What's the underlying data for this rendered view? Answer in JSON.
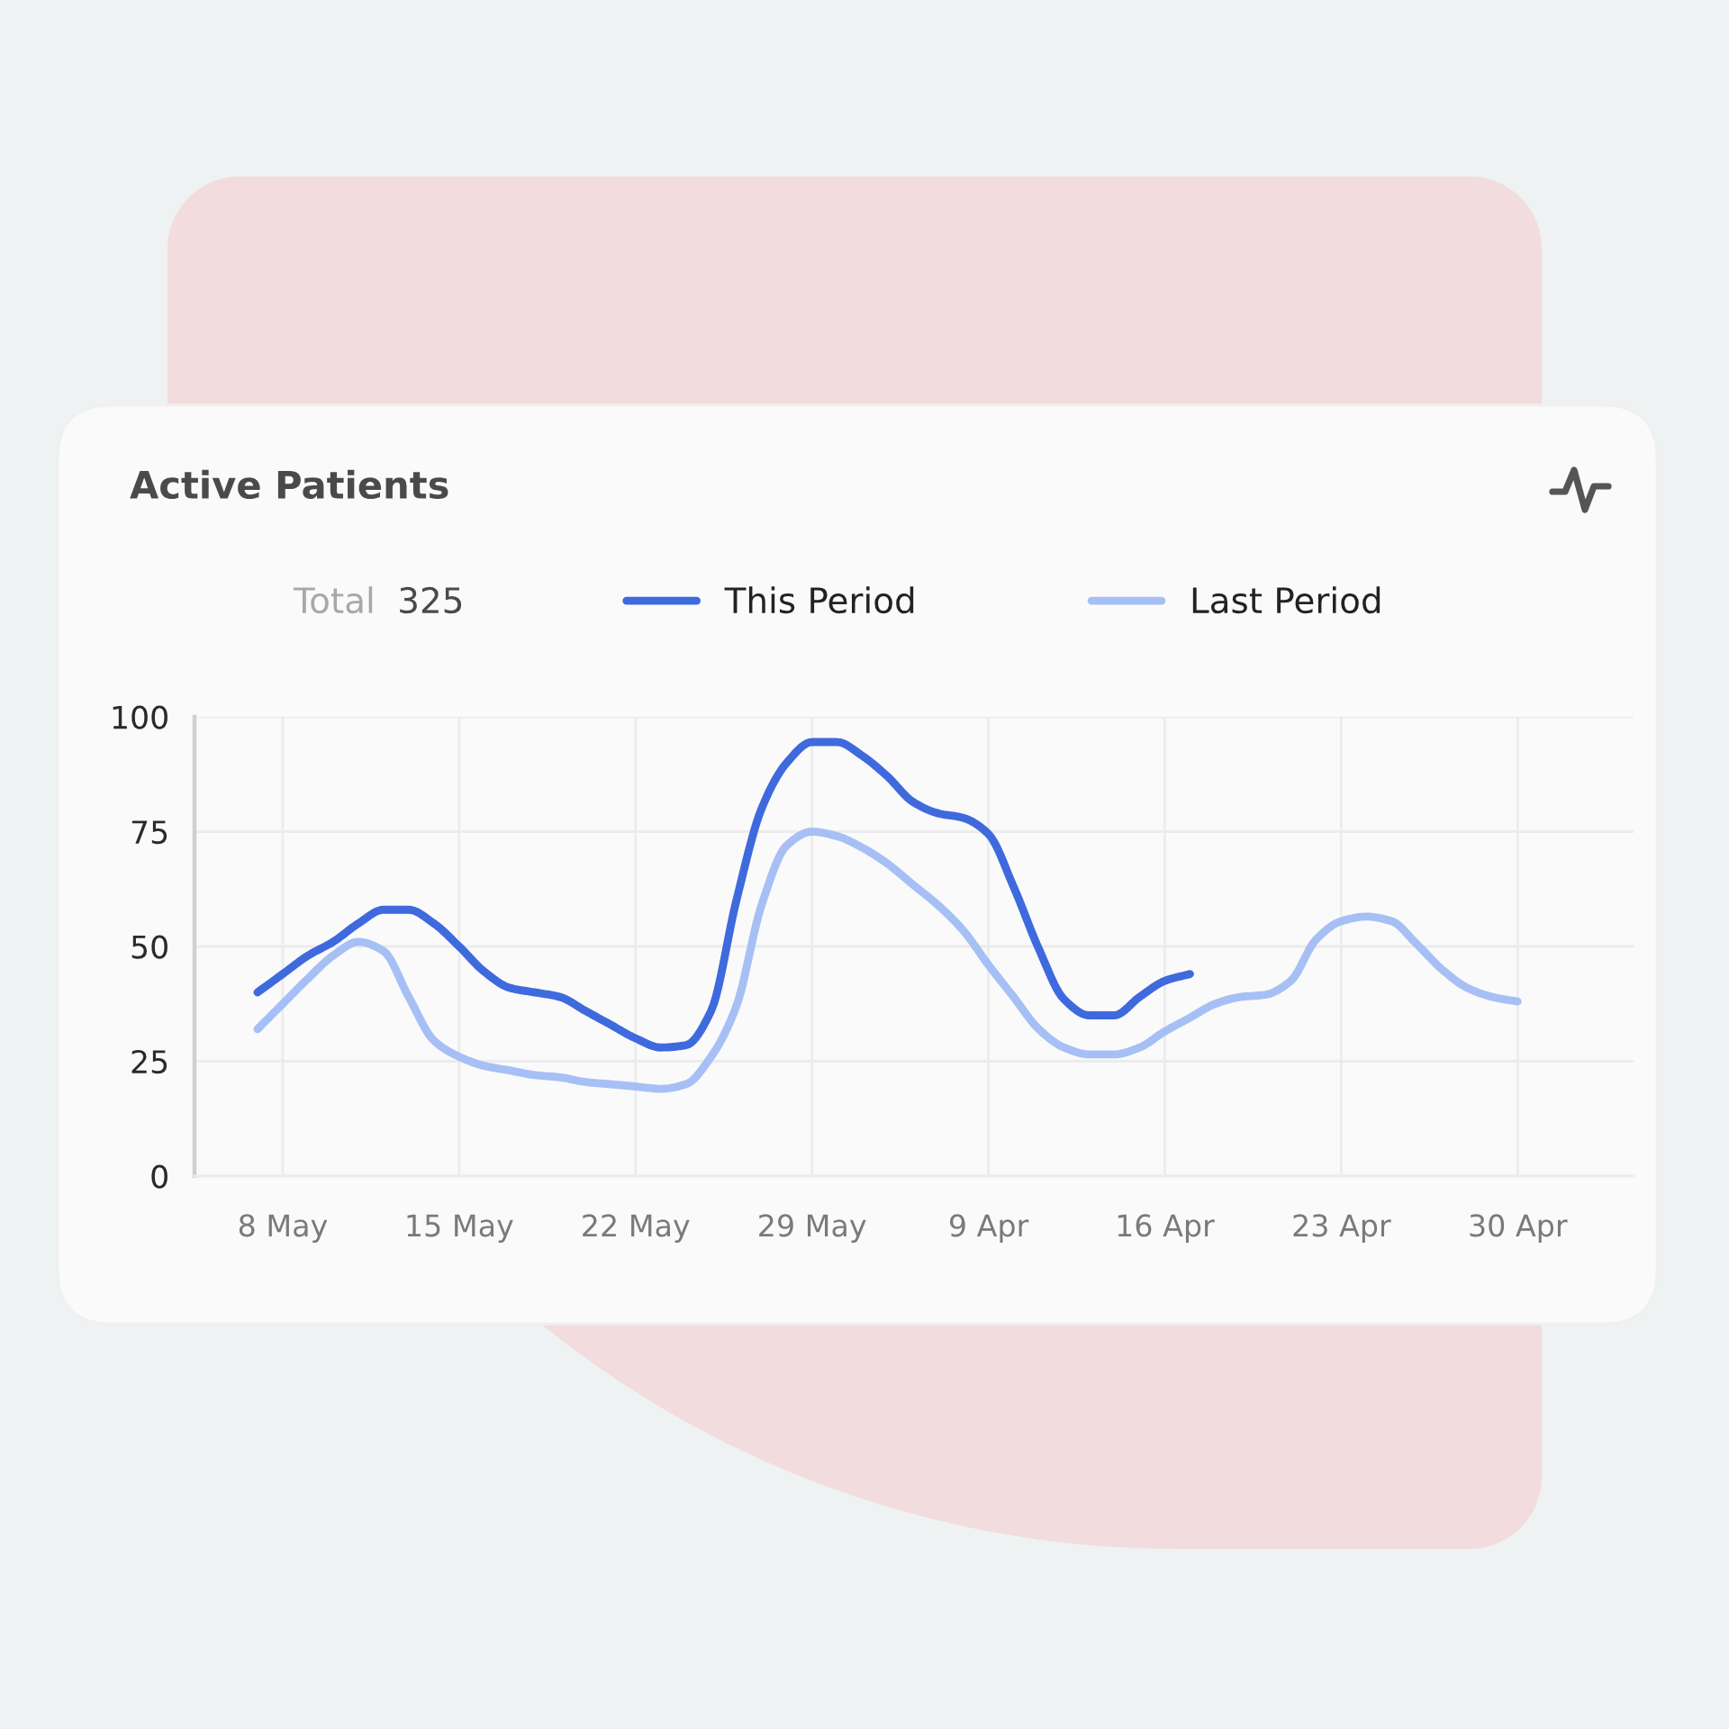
{
  "chart_data": {
    "type": "line",
    "title": "Active Patients",
    "annotations": [
      "Total",
      "325"
    ],
    "categories": [
      null,
      "8 May",
      null,
      null,
      null,
      null,
      null,
      null,
      "15 May",
      null,
      null,
      null,
      null,
      null,
      null,
      "22 May",
      null,
      null,
      null,
      null,
      null,
      null,
      "29 May",
      null,
      null,
      null,
      null,
      null,
      null,
      "9 Apr",
      null,
      null,
      null,
      null,
      null,
      null,
      "16 Apr",
      null,
      null,
      null,
      null,
      null,
      null,
      "23 Apr",
      null,
      null,
      null,
      null,
      null,
      null,
      "30 Apr"
    ],
    "series": [
      {
        "name": "This Period",
        "color": "#3f6ade",
        "values": [
          40,
          44,
          48,
          51,
          55,
          58,
          58,
          55,
          50,
          44.5,
          41,
          40,
          39,
          36,
          33,
          30,
          28,
          28.5,
          36,
          60,
          80,
          90,
          94.5,
          94.5,
          91.5,
          87,
          81.5,
          79,
          78,
          74.5,
          63,
          49.5,
          38.5,
          35,
          35,
          39,
          42.5,
          44,
          null,
          null,
          null,
          null,
          null,
          null,
          null,
          null,
          null,
          null,
          null,
          null,
          null
        ]
      },
      {
        "name": "Last Period",
        "color": "#a6c0f5",
        "values": [
          32,
          37.5,
          43,
          48,
          51,
          49,
          39,
          29.5,
          26,
          24,
          23,
          22,
          21.5,
          20.5,
          20,
          19.5,
          19,
          20,
          26,
          37,
          59,
          72,
          75,
          74,
          71.5,
          68,
          63.5,
          59,
          53.5,
          46,
          39,
          32,
          28,
          26.5,
          26.5,
          28,
          31.5,
          34.5,
          37.5,
          39,
          39.5,
          42.5,
          51.5,
          55.5,
          56.5,
          55.5,
          50.5,
          45,
          41,
          39,
          38
        ]
      }
    ],
    "ylim": [
      0,
      100
    ],
    "yticks": [
      0,
      25,
      50,
      75,
      100
    ],
    "grid": true,
    "legend": "top"
  }
}
